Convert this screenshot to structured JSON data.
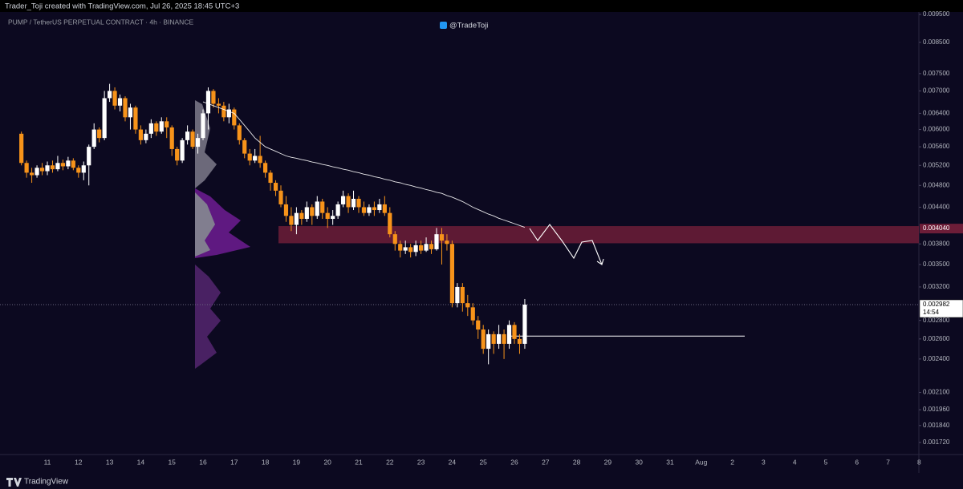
{
  "chart_data": {
    "type": "candlestick",
    "header": "Trader_Toji created with TradingView.com, Jul 26, 2025 18:45 UTC+3",
    "title": "PUMP / TetherUS PERPETUAL CONTRACT · 4h · BINANCE",
    "watermark": "@TradeToji",
    "brand": "TradingView",
    "log_scale": true,
    "up_color": "#ffffff",
    "down_color": "#f7931a",
    "ylim": [
      0.001639,
      0.009622
    ],
    "yticks": [
      {
        "value": 0.0095,
        "label": "0.009500"
      },
      {
        "value": 0.0085,
        "label": "0.008500"
      },
      {
        "value": 0.0075,
        "label": "0.007500"
      },
      {
        "value": 0.007,
        "label": "0.007000"
      },
      {
        "value": 0.0064,
        "label": "0.006400"
      },
      {
        "value": 0.006,
        "label": "0.006000"
      },
      {
        "value": 0.0056,
        "label": "0.005600"
      },
      {
        "value": 0.0052,
        "label": "0.005200"
      },
      {
        "value": 0.0048,
        "label": "0.004800"
      },
      {
        "value": 0.0044,
        "label": "0.004400"
      },
      {
        "value": 0.0038,
        "label": "0.003800"
      },
      {
        "value": 0.0035,
        "label": "0.003500"
      },
      {
        "value": 0.0032,
        "label": "0.003200"
      },
      {
        "value": 0.0028,
        "label": "0.002800"
      },
      {
        "value": 0.0026,
        "label": "0.002600"
      },
      {
        "value": 0.0024,
        "label": "0.002400"
      },
      {
        "value": 0.0021,
        "label": "0.002100"
      },
      {
        "value": 0.00196,
        "label": "0.001960"
      },
      {
        "value": 0.00184,
        "label": "0.001840"
      },
      {
        "value": 0.00172,
        "label": "0.001720"
      }
    ],
    "price_labels": [
      {
        "value": 0.00404,
        "label": "0.004040",
        "color": "#6d1d38"
      },
      {
        "value": 0.002982,
        "label": "0.002982",
        "color": "#ffffff",
        "countdown": "14:54"
      }
    ],
    "x_labels": [
      "11",
      "12",
      "13",
      "14",
      "15",
      "16",
      "17",
      "18",
      "19",
      "20",
      "21",
      "22",
      "23",
      "24",
      "25",
      "26",
      "27",
      "28",
      "29",
      "30",
      "31",
      "Aug",
      "2",
      "3",
      "4",
      "5",
      "6",
      "7",
      "8"
    ],
    "open": [
      0.0059,
      0.00525,
      0.00505,
      0.005,
      0.00515,
      0.00508,
      0.0052,
      0.00512,
      0.00525,
      0.00518,
      0.0053,
      0.00515,
      0.00505,
      0.0052,
      0.0056,
      0.006,
      0.0058,
      0.0068,
      0.007,
      0.0066,
      0.0068,
      0.0063,
      0.00655,
      0.006,
      0.00575,
      0.0059,
      0.00615,
      0.00595,
      0.0062,
      0.00605,
      0.00555,
      0.0053,
      0.00575,
      0.00595,
      0.0056,
      0.0058,
      0.0064,
      0.007,
      0.00665,
      0.0066,
      0.0063,
      0.0065,
      0.0061,
      0.00575,
      0.00545,
      0.0053,
      0.0054,
      0.00525,
      0.00505,
      0.00485,
      0.0047,
      0.00445,
      0.00425,
      0.0041,
      0.0043,
      0.0042,
      0.0044,
      0.00425,
      0.0045,
      0.0043,
      0.0042,
      0.00425,
      0.00445,
      0.0046,
      0.0044,
      0.00455,
      0.0044,
      0.0043,
      0.0044,
      0.00435,
      0.00445,
      0.0043,
      0.00395,
      0.0038,
      0.0037,
      0.00375,
      0.00368,
      0.00378,
      0.0037,
      0.0038,
      0.00372,
      0.00395,
      0.00385,
      0.0038,
      0.003,
      0.0032,
      0.003,
      0.00295,
      0.0028,
      0.0027,
      0.0025,
      0.00265,
      0.00255,
      0.00265,
      0.00255,
      0.00275,
      0.0026,
      0.00255
    ],
    "high": [
      0.00595,
      0.0053,
      0.00515,
      0.0052,
      0.00525,
      0.00528,
      0.0053,
      0.0054,
      0.00532,
      0.00538,
      0.00535,
      0.0052,
      0.00528,
      0.00565,
      0.00615,
      0.00605,
      0.007,
      0.0072,
      0.0071,
      0.0069,
      0.00685,
      0.00665,
      0.0066,
      0.0061,
      0.006,
      0.00625,
      0.0062,
      0.0063,
      0.0063,
      0.0061,
      0.0056,
      0.0058,
      0.0061,
      0.006,
      0.0059,
      0.0065,
      0.0071,
      0.00705,
      0.0068,
      0.0067,
      0.00665,
      0.00655,
      0.00615,
      0.0058,
      0.00555,
      0.00555,
      0.00585,
      0.0053,
      0.0051,
      0.0049,
      0.0048,
      0.0046,
      0.0044,
      0.0044,
      0.00435,
      0.0045,
      0.00445,
      0.0046,
      0.00455,
      0.0044,
      0.00435,
      0.0045,
      0.0047,
      0.00465,
      0.0047,
      0.0046,
      0.0045,
      0.00445,
      0.0045,
      0.00455,
      0.0046,
      0.0044,
      0.004,
      0.00385,
      0.00385,
      0.0038,
      0.00385,
      0.00385,
      0.0039,
      0.00385,
      0.00405,
      0.00405,
      0.00395,
      0.00385,
      0.00325,
      0.00325,
      0.0031,
      0.003,
      0.00285,
      0.00275,
      0.0027,
      0.00268,
      0.00275,
      0.0027,
      0.0028,
      0.00278,
      0.00265,
      0.00305
    ],
    "low": [
      0.0052,
      0.00495,
      0.00485,
      0.00495,
      0.005,
      0.005,
      0.00505,
      0.00508,
      0.0051,
      0.00512,
      0.0051,
      0.00495,
      0.0049,
      0.0048,
      0.00555,
      0.0057,
      0.00575,
      0.0067,
      0.0065,
      0.00645,
      0.0062,
      0.006,
      0.0059,
      0.00565,
      0.00568,
      0.0058,
      0.00585,
      0.0059,
      0.0058,
      0.0054,
      0.0052,
      0.00525,
      0.00565,
      0.00555,
      0.00545,
      0.00575,
      0.006,
      0.00655,
      0.0064,
      0.0062,
      0.00615,
      0.006,
      0.00565,
      0.00535,
      0.0052,
      0.00525,
      0.00515,
      0.00495,
      0.0047,
      0.0046,
      0.0044,
      0.00415,
      0.004,
      0.00395,
      0.0041,
      0.00415,
      0.0041,
      0.0042,
      0.0042,
      0.00405,
      0.0041,
      0.0042,
      0.0044,
      0.0043,
      0.00435,
      0.0043,
      0.00425,
      0.00425,
      0.00425,
      0.0043,
      0.00425,
      0.0039,
      0.0037,
      0.0036,
      0.00365,
      0.0036,
      0.00362,
      0.00365,
      0.00368,
      0.00365,
      0.0037,
      0.0035,
      0.0037,
      0.00295,
      0.00295,
      0.0029,
      0.00285,
      0.00275,
      0.0026,
      0.00245,
      0.00235,
      0.00245,
      0.0025,
      0.0024,
      0.0025,
      0.00255,
      0.00245,
      0.0025
    ],
    "close": [
      0.00525,
      0.00505,
      0.005,
      0.00515,
      0.00508,
      0.0052,
      0.00512,
      0.00525,
      0.00518,
      0.0053,
      0.00515,
      0.00505,
      0.0052,
      0.0056,
      0.006,
      0.0058,
      0.0068,
      0.007,
      0.0066,
      0.0068,
      0.0063,
      0.00655,
      0.006,
      0.00575,
      0.0059,
      0.00615,
      0.00595,
      0.0062,
      0.00605,
      0.00555,
      0.0053,
      0.00575,
      0.00595,
      0.0056,
      0.0058,
      0.0064,
      0.007,
      0.00665,
      0.0066,
      0.0063,
      0.0065,
      0.0061,
      0.00575,
      0.00545,
      0.0053,
      0.0054,
      0.00525,
      0.00505,
      0.00485,
      0.0047,
      0.00445,
      0.00425,
      0.0041,
      0.0043,
      0.0042,
      0.0044,
      0.00425,
      0.0045,
      0.0043,
      0.0042,
      0.00425,
      0.00445,
      0.0046,
      0.0044,
      0.00455,
      0.0044,
      0.0043,
      0.0044,
      0.00435,
      0.00445,
      0.0043,
      0.00395,
      0.0038,
      0.0037,
      0.00375,
      0.00368,
      0.00378,
      0.0037,
      0.0038,
      0.00372,
      0.00395,
      0.00385,
      0.0038,
      0.003,
      0.0032,
      0.003,
      0.00295,
      0.0028,
      0.0027,
      0.0025,
      0.00265,
      0.00255,
      0.00265,
      0.00255,
      0.00275,
      0.0026,
      0.00255,
      0.002982
    ],
    "ma": {
      "color": "#ffffff",
      "values": [
        null,
        null,
        null,
        null,
        null,
        null,
        null,
        null,
        null,
        null,
        null,
        null,
        null,
        null,
        null,
        null,
        null,
        null,
        null,
        null,
        null,
        null,
        null,
        null,
        null,
        null,
        null,
        null,
        null,
        null,
        null,
        null,
        null,
        null,
        null,
        0.0067,
        0.00665,
        0.0066,
        0.00655,
        0.0065,
        0.00645,
        0.0064,
        0.00625,
        0.0061,
        0.00595,
        0.0058,
        0.0057,
        0.0056,
        0.00555,
        0.0055,
        0.00545,
        0.0054,
        0.00537,
        0.00535,
        0.00532,
        0.0053,
        0.00527,
        0.00525,
        0.00522,
        0.0052,
        0.00517,
        0.00515,
        0.00512,
        0.0051,
        0.00507,
        0.00505,
        0.00502,
        0.005,
        0.00497,
        0.00495,
        0.00492,
        0.0049,
        0.00487,
        0.00485,
        0.00482,
        0.0048,
        0.00477,
        0.00475,
        0.00472,
        0.0047,
        0.00467,
        0.00465,
        0.00461,
        0.00458,
        0.00454,
        0.0045,
        0.00445,
        0.0044,
        0.00436,
        0.00432,
        0.00428,
        0.00425,
        0.00421,
        0.00418,
        0.00415,
        0.00412,
        0.00409,
        0.00406
      ]
    },
    "zone": {
      "top": 0.00408,
      "bottom": 0.00381,
      "color": "#6d1d38"
    },
    "level": {
      "value": 0.00263,
      "color": "#ffffff"
    }
  }
}
